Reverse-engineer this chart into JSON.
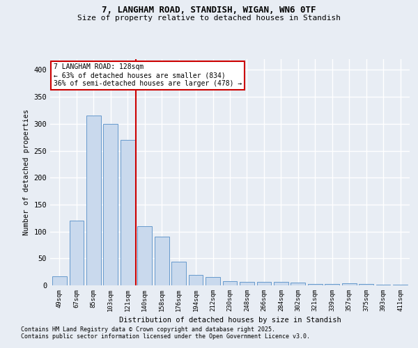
{
  "title1": "7, LANGHAM ROAD, STANDISH, WIGAN, WN6 0TF",
  "title2": "Size of property relative to detached houses in Standish",
  "xlabel": "Distribution of detached houses by size in Standish",
  "ylabel": "Number of detached properties",
  "categories": [
    "49sqm",
    "67sqm",
    "85sqm",
    "103sqm",
    "121sqm",
    "140sqm",
    "158sqm",
    "176sqm",
    "194sqm",
    "212sqm",
    "230sqm",
    "248sqm",
    "266sqm",
    "284sqm",
    "302sqm",
    "321sqm",
    "339sqm",
    "357sqm",
    "375sqm",
    "393sqm",
    "411sqm"
  ],
  "values": [
    17,
    120,
    315,
    300,
    270,
    110,
    90,
    44,
    20,
    15,
    8,
    7,
    6,
    6,
    5,
    3,
    2,
    4,
    2,
    1,
    1
  ],
  "bar_color": "#c9d9ed",
  "bar_edge_color": "#6699cc",
  "background_color": "#e8edf4",
  "grid_color": "#ffffff",
  "vline_x_index": 4.5,
  "vline_color": "#cc0000",
  "annotation_line1": "7 LANGHAM ROAD: 128sqm",
  "annotation_line2": "← 63% of detached houses are smaller (834)",
  "annotation_line3": "36% of semi-detached houses are larger (478) →",
  "annotation_box_color": "#ffffff",
  "annotation_box_edge_color": "#cc0000",
  "footnote1": "Contains HM Land Registry data © Crown copyright and database right 2025.",
  "footnote2": "Contains public sector information licensed under the Open Government Licence v3.0.",
  "ylim": [
    0,
    420
  ],
  "yticks": [
    0,
    50,
    100,
    150,
    200,
    250,
    300,
    350,
    400
  ]
}
